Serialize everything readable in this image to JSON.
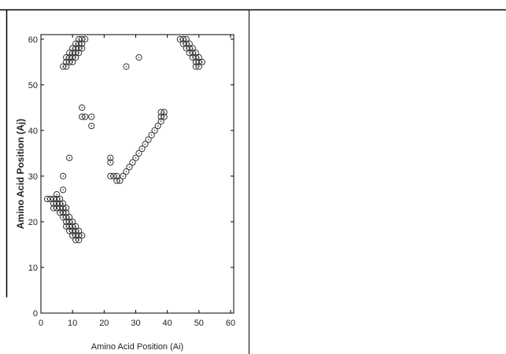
{
  "chart_data": {
    "type": "scatter",
    "xlabel": "Amino Acid Position (Ai)",
    "ylabel": "Amino Acid Position (Aj)",
    "xlim": [
      0,
      61
    ],
    "ylim": [
      0,
      61
    ],
    "xticks": [
      0,
      10,
      20,
      30,
      40,
      50,
      60
    ],
    "yticks": [
      0,
      10,
      20,
      30,
      40,
      50,
      60
    ],
    "grid": false,
    "marker": "open-circle",
    "marker_color": "#333333",
    "series": [
      {
        "points": [
          [
            2,
            25
          ],
          [
            3,
            25
          ],
          [
            4,
            25
          ],
          [
            4,
            24
          ],
          [
            4,
            23
          ],
          [
            5,
            26
          ],
          [
            5,
            25
          ],
          [
            5,
            24
          ],
          [
            5,
            23
          ],
          [
            6,
            25
          ],
          [
            6,
            24
          ],
          [
            6,
            23
          ],
          [
            6,
            22
          ],
          [
            7,
            24
          ],
          [
            7,
            23
          ],
          [
            7,
            22
          ],
          [
            7,
            21
          ],
          [
            7,
            27
          ],
          [
            7,
            30
          ],
          [
            8,
            23
          ],
          [
            8,
            22
          ],
          [
            8,
            21
          ],
          [
            8,
            20
          ],
          [
            8,
            19
          ],
          [
            9,
            21
          ],
          [
            9,
            20
          ],
          [
            9,
            19
          ],
          [
            9,
            18
          ],
          [
            9,
            34
          ],
          [
            10,
            20
          ],
          [
            10,
            19
          ],
          [
            10,
            18
          ],
          [
            10,
            17
          ],
          [
            11,
            19
          ],
          [
            11,
            18
          ],
          [
            11,
            17
          ],
          [
            11,
            16
          ],
          [
            12,
            18
          ],
          [
            12,
            17
          ],
          [
            12,
            16
          ],
          [
            13,
            17
          ],
          [
            7,
            54
          ],
          [
            8,
            54
          ],
          [
            8,
            55
          ],
          [
            8,
            56
          ],
          [
            9,
            55
          ],
          [
            9,
            56
          ],
          [
            9,
            57
          ],
          [
            10,
            55
          ],
          [
            10,
            56
          ],
          [
            10,
            57
          ],
          [
            10,
            58
          ],
          [
            11,
            56
          ],
          [
            11,
            57
          ],
          [
            11,
            58
          ],
          [
            11,
            59
          ],
          [
            12,
            57
          ],
          [
            12,
            58
          ],
          [
            12,
            59
          ],
          [
            12,
            60
          ],
          [
            13,
            58
          ],
          [
            13,
            59
          ],
          [
            13,
            60
          ],
          [
            14,
            60
          ],
          [
            13,
            45
          ],
          [
            13,
            43
          ],
          [
            14,
            43
          ],
          [
            16,
            43
          ],
          [
            16,
            41
          ],
          [
            22,
            34
          ],
          [
            22,
            33
          ],
          [
            22,
            30
          ],
          [
            23,
            30
          ],
          [
            24,
            30
          ],
          [
            24,
            29
          ],
          [
            25,
            29
          ],
          [
            26,
            30
          ],
          [
            27,
            31
          ],
          [
            28,
            32
          ],
          [
            29,
            33
          ],
          [
            30,
            34
          ],
          [
            31,
            35
          ],
          [
            32,
            36
          ],
          [
            33,
            37
          ],
          [
            34,
            38
          ],
          [
            35,
            39
          ],
          [
            36,
            40
          ],
          [
            37,
            41
          ],
          [
            38,
            42
          ],
          [
            38,
            43
          ],
          [
            38,
            44
          ],
          [
            39,
            43
          ],
          [
            39,
            44
          ],
          [
            27,
            54
          ],
          [
            31,
            56
          ],
          [
            44,
            60
          ],
          [
            45,
            60
          ],
          [
            45,
            59
          ],
          [
            46,
            60
          ],
          [
            46,
            59
          ],
          [
            46,
            58
          ],
          [
            47,
            59
          ],
          [
            47,
            58
          ],
          [
            47,
            57
          ],
          [
            48,
            58
          ],
          [
            48,
            57
          ],
          [
            48,
            56
          ],
          [
            49,
            57
          ],
          [
            49,
            56
          ],
          [
            49,
            55
          ],
          [
            49,
            54
          ],
          [
            50,
            56
          ],
          [
            50,
            55
          ],
          [
            50,
            54
          ],
          [
            51,
            55
          ]
        ]
      }
    ]
  }
}
